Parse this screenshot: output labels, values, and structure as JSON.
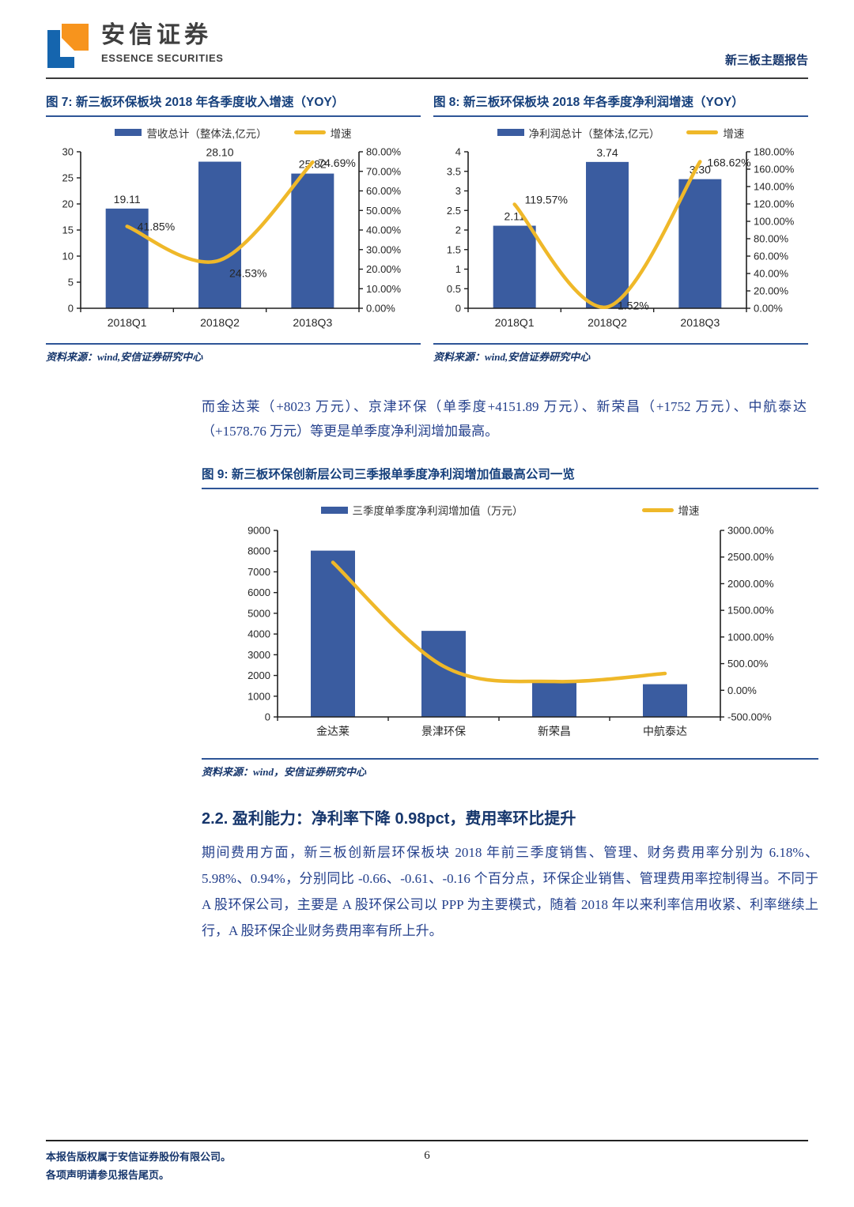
{
  "header": {
    "brand_cn": "安信证券",
    "brand_en": "ESSENCE SECURITIES",
    "report_type": "新三板主题报告"
  },
  "colors": {
    "bar": "#3A5CA0",
    "line": "#EFB829",
    "accent_underline": "#2E5597",
    "heading_blue": "#16366C",
    "body_blue": "#24408C",
    "logo_blue": "#1565AE",
    "logo_orange": "#F7941D"
  },
  "chart_data": [
    {
      "id": "fig7",
      "type": "bar",
      "title": "图 7: 新三板环保板块 2018 年各季度收入增速（YOY）",
      "categories": [
        "2018Q1",
        "2018Q2",
        "2018Q3"
      ],
      "series": [
        {
          "name": "营收总计（整体法,亿元）",
          "type": "bar",
          "axis": "left",
          "values": [
            19.11,
            28.1,
            25.82
          ],
          "labels": [
            "19.11",
            "28.10",
            "25.82"
          ]
        },
        {
          "name": "增速",
          "type": "line",
          "axis": "right",
          "values": [
            41.85,
            24.53,
            74.69
          ],
          "labels": [
            "41.85%",
            "24.53%",
            "74.69%"
          ]
        }
      ],
      "left_axis": {
        "min": 0,
        "max": 30,
        "tick_values": [
          0,
          5,
          10,
          15,
          20,
          25,
          30
        ],
        "tick_labels": [
          "0",
          "5",
          "10",
          "15",
          "20",
          "25",
          "30"
        ]
      },
      "right_axis": {
        "min": 0,
        "max": 80,
        "tick_values": [
          0,
          10,
          20,
          30,
          40,
          50,
          60,
          70,
          80
        ],
        "tick_labels": [
          "0.00%",
          "10.00%",
          "20.00%",
          "30.00%",
          "40.00%",
          "50.00%",
          "60.00%",
          "70.00%",
          "80.00%"
        ]
      },
      "grid": false,
      "legend_position": "top",
      "source": "资料来源：wind,安信证券研究中心"
    },
    {
      "id": "fig8",
      "type": "bar",
      "title": "图 8: 新三板环保板块 2018 年各季度净利润增速（YOY）",
      "categories": [
        "2018Q1",
        "2018Q2",
        "2018Q3"
      ],
      "series": [
        {
          "name": "净利润总计（整体法,亿元）",
          "type": "bar",
          "axis": "left",
          "values": [
            2.11,
            3.74,
            3.3
          ],
          "labels": [
            "2.11",
            "3.74",
            "3.30"
          ]
        },
        {
          "name": "增速",
          "type": "line",
          "axis": "right",
          "values": [
            119.57,
            1.52,
            168.62
          ],
          "labels": [
            "119.57%",
            "1.52%",
            "168.62%"
          ]
        }
      ],
      "left_axis": {
        "min": 0,
        "max": 4,
        "tick_values": [
          0,
          0.5,
          1,
          1.5,
          2,
          2.5,
          3,
          3.5,
          4
        ],
        "tick_labels": [
          "0",
          "0.5",
          "1",
          "1.5",
          "2",
          "2.5",
          "3",
          "3.5",
          "4"
        ]
      },
      "right_axis": {
        "min": 0,
        "max": 180,
        "tick_values": [
          0,
          20,
          40,
          60,
          80,
          100,
          120,
          140,
          160,
          180
        ],
        "tick_labels": [
          "0.00%",
          "20.00%",
          "40.00%",
          "60.00%",
          "80.00%",
          "100.00%",
          "120.00%",
          "140.00%",
          "160.00%",
          "180.00%"
        ]
      },
      "grid": false,
      "legend_position": "top",
      "source": "资料来源：wind,安信证券研究中心"
    },
    {
      "id": "fig9",
      "type": "bar",
      "title": "图 9: 新三板环保创新层公司三季报单季度净利润增加值最高公司一览",
      "categories": [
        "金达莱",
        "景津环保",
        "新荣昌",
        "中航泰达"
      ],
      "series": [
        {
          "name": "三季度单季度净利润增加值（万元）",
          "type": "bar",
          "axis": "left",
          "values": [
            8023,
            4151.89,
            1752,
            1578.76
          ],
          "labels": null
        },
        {
          "name": "增速",
          "type": "line",
          "axis": "right",
          "values": [
            2400,
            450,
            165,
            315
          ],
          "labels": null
        }
      ],
      "left_axis": {
        "min": 0,
        "max": 9000,
        "tick_values": [
          0,
          1000,
          2000,
          3000,
          4000,
          5000,
          6000,
          7000,
          8000,
          9000
        ],
        "tick_labels": [
          "0",
          "1000",
          "2000",
          "3000",
          "4000",
          "5000",
          "6000",
          "7000",
          "8000",
          "9000"
        ]
      },
      "right_axis": {
        "min": -500,
        "max": 3000,
        "tick_values": [
          -500,
          0,
          500,
          1000,
          1500,
          2000,
          2500,
          3000
        ],
        "tick_labels": [
          "-500.00%",
          "0.00%",
          "500.00%",
          "1000.00%",
          "1500.00%",
          "2000.00%",
          "2500.00%",
          "3000.00%"
        ]
      },
      "grid": false,
      "legend_position": "top",
      "source": "资料来源：wind，安信证券研究中心"
    }
  ],
  "intro": {
    "text": "而金达莱（+8023 万元）、京津环保（单季度+4151.89 万元）、新荣昌（+1752 万元）、中航泰达（+1578.76 万元）等更是单季度净利润增加最高。"
  },
  "section": {
    "heading": "2.2. 盈利能力：净利率下降 0.98pct，费用率环比提升",
    "body": "期间费用方面，新三板创新层环保板块 2018 年前三季度销售、管理、财务费用率分别为 6.18%、5.98%、0.94%，分别同比 -0.66、-0.61、-0.16 个百分点，环保企业销售、管理费用率控制得当。不同于 A 股环保公司，主要是 A 股环保公司以 PPP 为主要模式，随着 2018 年以来利率信用收紧、利率继续上行，A 股环保企业财务费用率有所上升。"
  },
  "footer": {
    "line1": "本报告版权属于安信证券股份有限公司。",
    "line2": "各项声明请参见报告尾页。",
    "page_number": "6"
  }
}
